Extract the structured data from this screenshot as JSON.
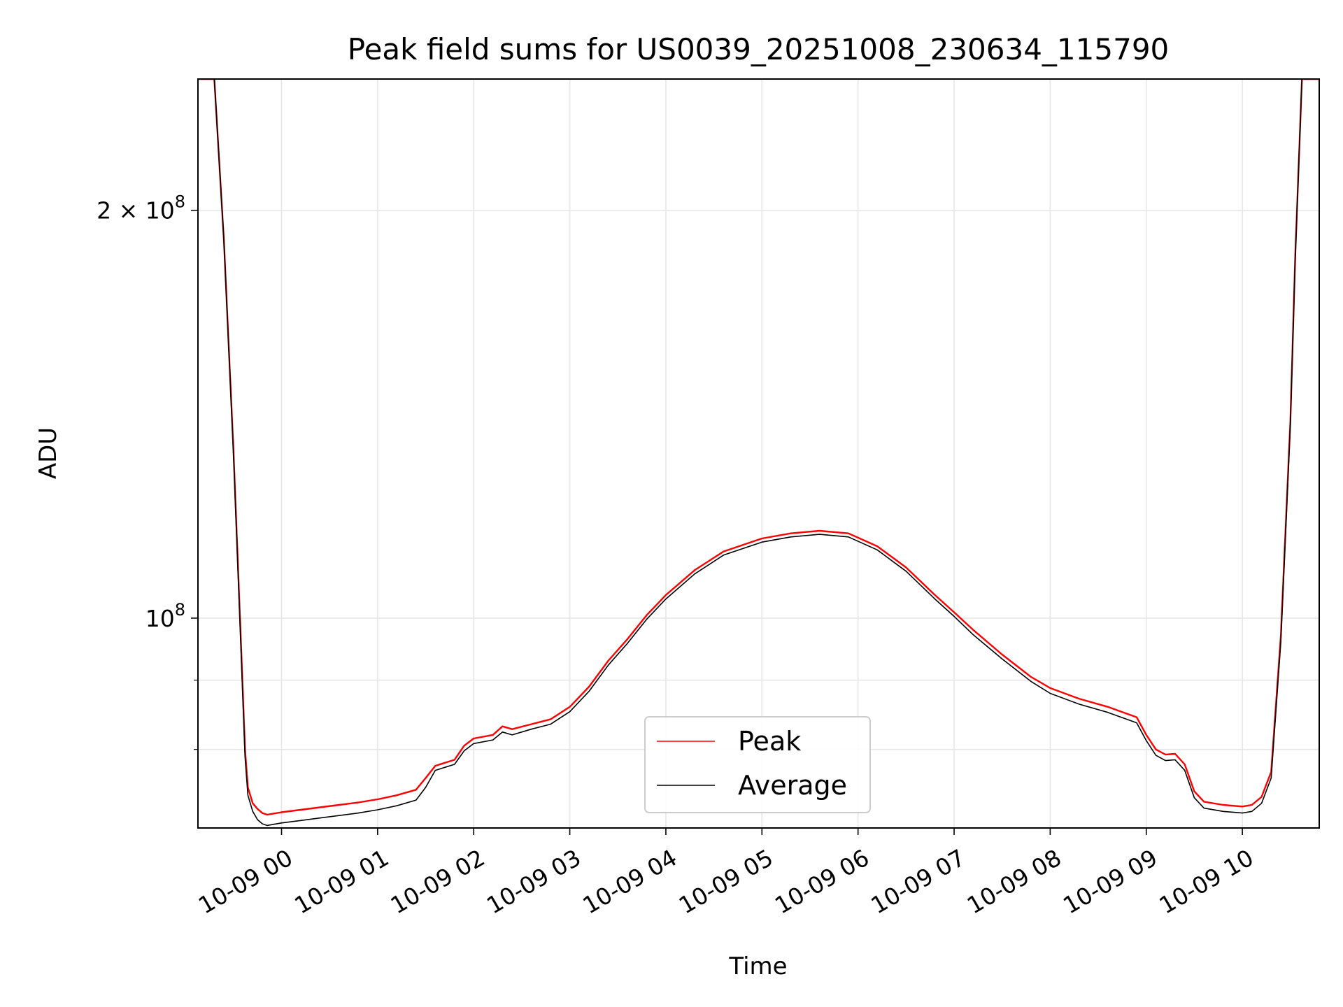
{
  "chart_data": {
    "type": "line",
    "title": "Peak field sums for US0039_20251008_230634_115790",
    "xlabel": "Time",
    "ylabel": "ADU",
    "yscale": "log",
    "xlim": [
      -0.87,
      10.8
    ],
    "ylim": [
      70000000,
      250000000
    ],
    "grid": true,
    "legend": {
      "position": "bottom-center",
      "entries": [
        "Peak",
        "Average"
      ]
    },
    "x_ticks": [
      {
        "value": 0,
        "label": "10-09 00"
      },
      {
        "value": 1,
        "label": "10-09 01"
      },
      {
        "value": 2,
        "label": "10-09 02"
      },
      {
        "value": 3,
        "label": "10-09 03"
      },
      {
        "value": 4,
        "label": "10-09 04"
      },
      {
        "value": 5,
        "label": "10-09 05"
      },
      {
        "value": 6,
        "label": "10-09 06"
      },
      {
        "value": 7,
        "label": "10-09 07"
      },
      {
        "value": 8,
        "label": "10-09 08"
      },
      {
        "value": 9,
        "label": "10-09 09"
      },
      {
        "value": 10,
        "label": "10-09 10"
      }
    ],
    "y_ticks_major": [
      {
        "value": 100000000,
        "base": "10",
        "exp": "8",
        "prefix": ""
      },
      {
        "value": 200000000,
        "base": "10",
        "exp": "8",
        "prefix": "2 × "
      }
    ],
    "y_ticks_minor": [
      80000000,
      90000000
    ],
    "x_hours": [
      -0.87,
      -0.7,
      -0.6,
      -0.5,
      -0.42,
      -0.38,
      -0.35,
      -0.3,
      -0.25,
      -0.2,
      -0.15,
      -0.1,
      0,
      0.2,
      0.4,
      0.6,
      0.8,
      1.0,
      1.2,
      1.4,
      1.5,
      1.6,
      1.8,
      1.9,
      2.0,
      2.2,
      2.3,
      2.4,
      2.6,
      2.8,
      3.0,
      3.2,
      3.4,
      3.6,
      3.8,
      4.0,
      4.3,
      4.6,
      5.0,
      5.3,
      5.6,
      5.9,
      6.2,
      6.5,
      6.8,
      7.0,
      7.2,
      7.5,
      7.8,
      8.0,
      8.3,
      8.6,
      8.9,
      9.0,
      9.1,
      9.2,
      9.3,
      9.4,
      9.5,
      9.6,
      9.8,
      10.0,
      10.1,
      10.2,
      10.3,
      10.4,
      10.5,
      10.55,
      10.62,
      10.8
    ],
    "series": [
      {
        "name": "Peak",
        "color": "#ff0000",
        "values": [
          250000000,
          250000000,
          190000000,
          133000000,
          95000000,
          80000000,
          75000000,
          73000000,
          72300000,
          71800000,
          71600000,
          71700000,
          71900000,
          72200000,
          72500000,
          72800000,
          73100000,
          73500000,
          74000000,
          74700000,
          76200000,
          77800000,
          78600000,
          80500000,
          81500000,
          82000000,
          83200000,
          82800000,
          83500000,
          84200000,
          86000000,
          89000000,
          93000000,
          96500000,
          100500000,
          104000000,
          108500000,
          112000000,
          114500000,
          115500000,
          116000000,
          115500000,
          113000000,
          109000000,
          104000000,
          101000000,
          98000000,
          94000000,
          90500000,
          88800000,
          87200000,
          86000000,
          84500000,
          82000000,
          80000000,
          79300000,
          79400000,
          78000000,
          74500000,
          73200000,
          72800000,
          72600000,
          72800000,
          73800000,
          77000000,
          97000000,
          140000000,
          185000000,
          250000000,
          250000000
        ]
      },
      {
        "name": "Average",
        "color": "#000000",
        "values": [
          250000000,
          250000000,
          190000000,
          132000000,
          94000000,
          79000000,
          74000000,
          72000000,
          71000000,
          70500000,
          70300000,
          70400000,
          70600000,
          70900000,
          71200000,
          71500000,
          71800000,
          72200000,
          72700000,
          73400000,
          75000000,
          77200000,
          78000000,
          79800000,
          80800000,
          81300000,
          82400000,
          82000000,
          82800000,
          83500000,
          85300000,
          88300000,
          92300000,
          95800000,
          99800000,
          103300000,
          107800000,
          111300000,
          113800000,
          114800000,
          115300000,
          114800000,
          112300000,
          108300000,
          103300000,
          100300000,
          97200000,
          93300000,
          89800000,
          88000000,
          86400000,
          85200000,
          83700000,
          81200000,
          79200000,
          78500000,
          78600000,
          77200000,
          73700000,
          72400000,
          72000000,
          71800000,
          72000000,
          73000000,
          76200000,
          96000000,
          139000000,
          184000000,
          250000000,
          250000000
        ]
      }
    ]
  }
}
